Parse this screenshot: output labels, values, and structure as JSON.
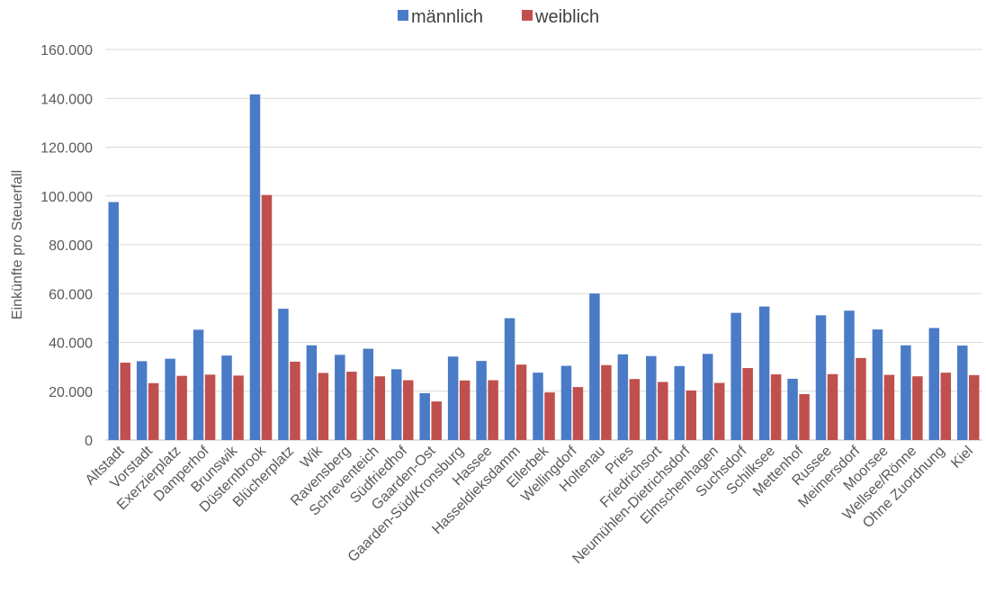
{
  "chart_data": {
    "type": "bar",
    "title": "",
    "xlabel": "",
    "ylabel": "Einkünfte pro Steuerfall",
    "ylim": [
      0,
      160000
    ],
    "yticks": [
      0,
      20000,
      40000,
      60000,
      80000,
      100000,
      120000,
      140000,
      160000
    ],
    "ytick_labels": [
      "0",
      "20.000",
      "40.000",
      "60.000",
      "80.000",
      "100.000",
      "120.000",
      "140.000",
      "160.000"
    ],
    "grid": true,
    "legend_position": "top-center",
    "categories": [
      "Altstadt",
      "Vorstadt",
      "Exerzierplatz",
      "Damperhof",
      "Brunswik",
      "Düsternbrook",
      "Blücherplatz",
      "Wik",
      "Ravensberg",
      "Schreventeich",
      "Südfriedhof",
      "Gaarden-Ost",
      "Gaarden-Süd/Kronsburg",
      "Hassee",
      "Hasseldieksdamm",
      "Ellerbek",
      "Wellingdorf",
      "Holtenau",
      "Pries",
      "Friedrichsort",
      "Neumühlen-Dietrichsdorf",
      "Elmschenhagen",
      "Suchsdorf",
      "Schilksee",
      "Mettenhof",
      "Russee",
      "Meimersdorf",
      "Moorsee",
      "Wellsee/Rönne",
      "Ohne Zuordnung",
      "Kiel"
    ],
    "series": [
      {
        "name": "männlich",
        "color": "#4a7bc6",
        "values": [
          97500,
          32300,
          33300,
          45200,
          34600,
          141600,
          53800,
          38800,
          34900,
          37400,
          29000,
          19200,
          34200,
          32400,
          49900,
          27600,
          30400,
          60000,
          35100,
          34400,
          30300,
          35300,
          52100,
          54700,
          25100,
          51100,
          53000,
          45300,
          38800,
          45900,
          38700
        ]
      },
      {
        "name": "weiblich",
        "color": "#c0504d",
        "values": [
          31700,
          23300,
          26300,
          26800,
          26400,
          100400,
          32100,
          27500,
          28000,
          26100,
          24500,
          15800,
          24400,
          24500,
          30900,
          19500,
          21700,
          30700,
          25000,
          23800,
          20300,
          23400,
          29500,
          26900,
          18800,
          27000,
          33600,
          26700,
          26100,
          27600,
          26600
        ]
      }
    ]
  }
}
